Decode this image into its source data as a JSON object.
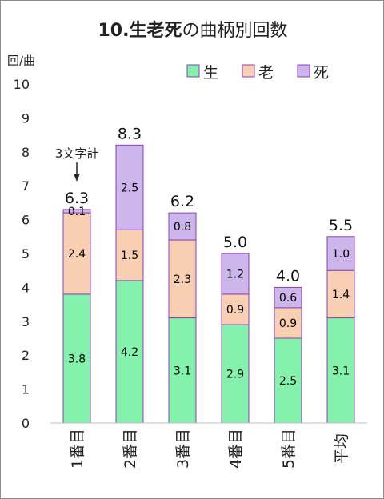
{
  "chart_data": {
    "type": "bar",
    "stacked": true,
    "title": "10.生老死の曲柄別回数",
    "title_bold_part": "10.生老死",
    "title_normal_part": "の曲柄別回数",
    "ylabel": "回/曲",
    "xlabel": "",
    "ylim": [
      0,
      10
    ],
    "yticks": [
      0,
      1,
      2,
      3,
      4,
      5,
      6,
      7,
      8,
      9,
      10
    ],
    "grid": false,
    "legend_position": "top-right",
    "categories": [
      "1番目",
      "2番目",
      "3番目",
      "4番目",
      "5番目",
      "平均"
    ],
    "series": [
      {
        "name": "生",
        "color": "#84F1AC",
        "values": [
          3.8,
          4.2,
          3.1,
          2.9,
          2.5,
          3.1
        ]
      },
      {
        "name": "老",
        "color": "#F8CFB2",
        "values": [
          2.4,
          1.5,
          2.3,
          0.9,
          0.9,
          1.4
        ]
      },
      {
        "name": "死",
        "color": "#CDB6EC",
        "values": [
          0.1,
          2.5,
          0.8,
          1.2,
          0.6,
          1.0
        ]
      }
    ],
    "totals": [
      "6.3",
      "8.3",
      "6.2",
      "5.0",
      "4.0",
      "5.5"
    ],
    "annotation": {
      "text": "3文字計",
      "category_index": 0
    }
  }
}
